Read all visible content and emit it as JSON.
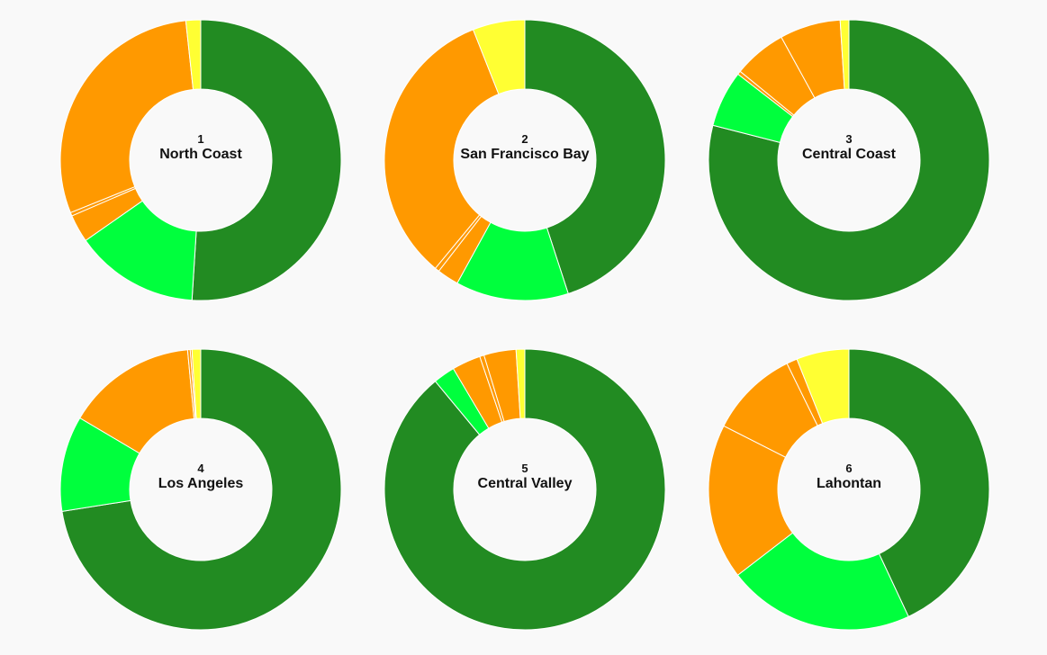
{
  "chart_data": {
    "type": "donut-grid",
    "segment_colors": [
      "#228b22",
      "#00ff3d",
      "#ff9900",
      "#ff9900",
      "#ff9900",
      "#ffff33"
    ],
    "charts": [
      {
        "id": "1",
        "name": "North Coast",
        "values": [
          51.0,
          14.3,
          3.2,
          0.4,
          29.4,
          1.7
        ]
      },
      {
        "id": "2",
        "name": "San Francisco Bay",
        "values": [
          45.0,
          13.0,
          2.5,
          0.5,
          33.0,
          6.0
        ]
      },
      {
        "id": "3",
        "name": "Central Coast",
        "values": [
          79.0,
          6.5,
          0.4,
          6.1,
          7.0,
          1.0
        ]
      },
      {
        "id": "4",
        "name": "Los Angeles",
        "values": [
          72.5,
          11.0,
          15.0,
          0.3,
          0.2,
          1.0
        ]
      },
      {
        "id": "5",
        "name": "Central Valley",
        "values": [
          89.0,
          2.5,
          3.3,
          0.5,
          3.7,
          1.0
        ]
      },
      {
        "id": "6",
        "name": "Lahontan",
        "values": [
          42.0,
          21.0,
          17.5,
          10.0,
          1.2,
          5.9
        ]
      }
    ]
  }
}
